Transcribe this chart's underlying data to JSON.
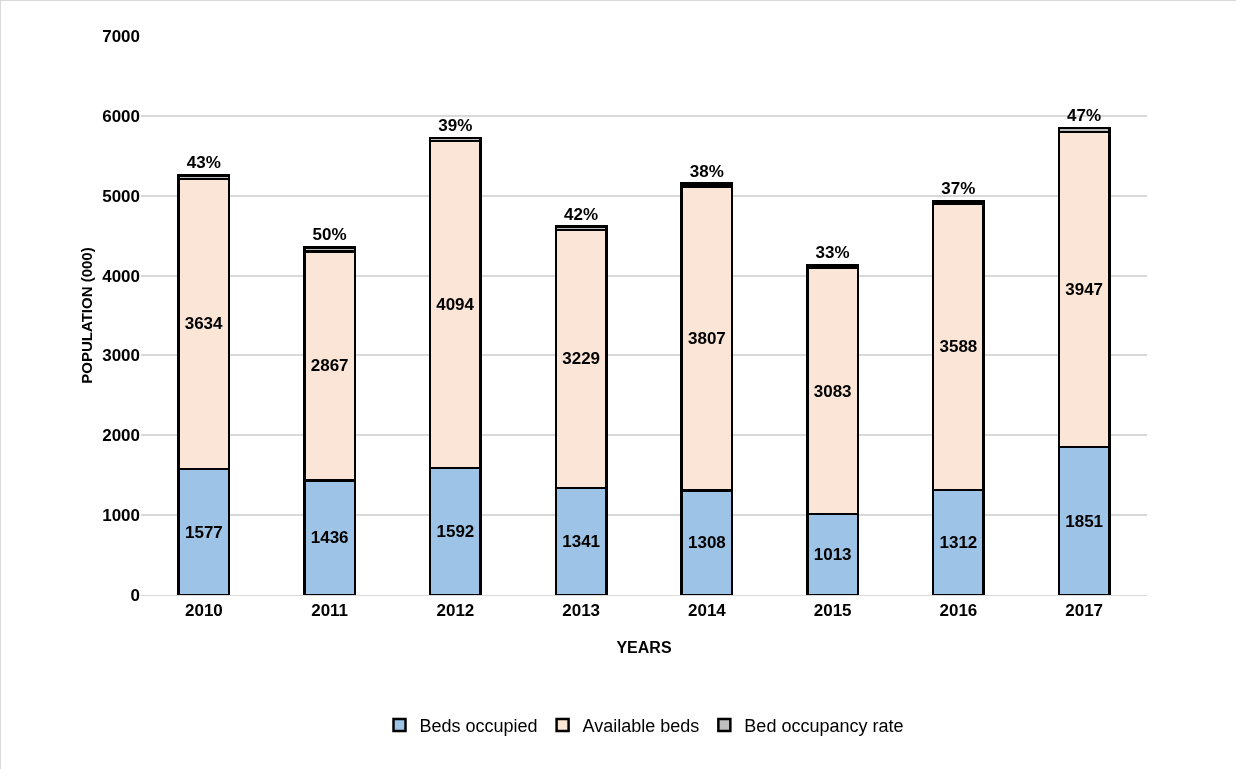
{
  "chart_data": {
    "type": "bar",
    "stacked": true,
    "xlabel": "YEARS",
    "ylabel": "POPULATION (000)",
    "categories": [
      "2010",
      "2011",
      "2012",
      "2013",
      "2014",
      "2015",
      "2016",
      "2017"
    ],
    "series": [
      {
        "name": "Beds occupied",
        "color": "#9dc3e6",
        "values": [
          1577,
          1436,
          1592,
          1341,
          1308,
          1013,
          1312,
          1851
        ]
      },
      {
        "name": "Available beds",
        "color": "#fbe5d6",
        "values": [
          3634,
          2867,
          4094,
          3229,
          3807,
          3083,
          3588,
          3947
        ]
      },
      {
        "name": "Bed occupancy rate",
        "color": "#bfbfbf",
        "values": [
          43,
          50,
          39,
          42,
          38,
          33,
          37,
          47
        ],
        "value_labels": [
          "43%",
          "50%",
          "39%",
          "42%",
          "38%",
          "33%",
          "37%",
          "47%"
        ]
      }
    ],
    "data_labels": true,
    "ylim": [
      0,
      7000
    ],
    "yticks": [
      0,
      1000,
      2000,
      3000,
      4000,
      5000,
      6000,
      7000
    ],
    "grid": "y",
    "legend": "bottom"
  }
}
